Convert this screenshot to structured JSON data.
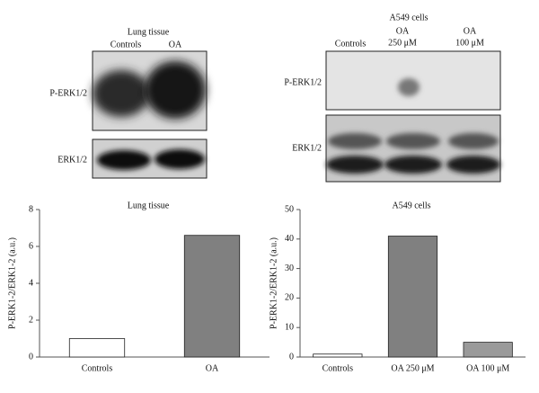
{
  "blots": [
    {
      "title": "Lung tissue",
      "columns": [
        [
          "Controls"
        ],
        [
          "OA"
        ]
      ],
      "rows": [
        "P-ERK1/2",
        "ERK1/2"
      ]
    },
    {
      "title": "A549 cells",
      "columns": [
        [
          "Controls"
        ],
        [
          "OA",
          "250 μM"
        ],
        [
          "OA",
          "100 μM"
        ]
      ],
      "rows": [
        "P-ERK1/2",
        "ERK1/2"
      ]
    }
  ],
  "chart_data": [
    {
      "type": "bar",
      "title": "Lung tissue",
      "y_label": "P-ERK1-2/ERK1-2 (a.u.)",
      "categories": [
        "Controls",
        "OA"
      ],
      "values": [
        1.0,
        6.6
      ],
      "colors": [
        "#ffffff",
        "#808080"
      ],
      "ylim": [
        0,
        8
      ],
      "yticks": [
        0,
        2,
        4,
        6,
        8
      ]
    },
    {
      "type": "bar",
      "title": "A549 cells",
      "y_label": "P-ERK1-2/ERK1-2 (a.u.)",
      "categories": [
        "Controls",
        "OA 250 μM",
        "OA 100 μM"
      ],
      "values": [
        1,
        41,
        5
      ],
      "colors": [
        "#ffffff",
        "#808080",
        "#9a9a9a"
      ],
      "ylim": [
        0,
        50
      ],
      "yticks": [
        0,
        10,
        20,
        30,
        40,
        50
      ]
    }
  ]
}
